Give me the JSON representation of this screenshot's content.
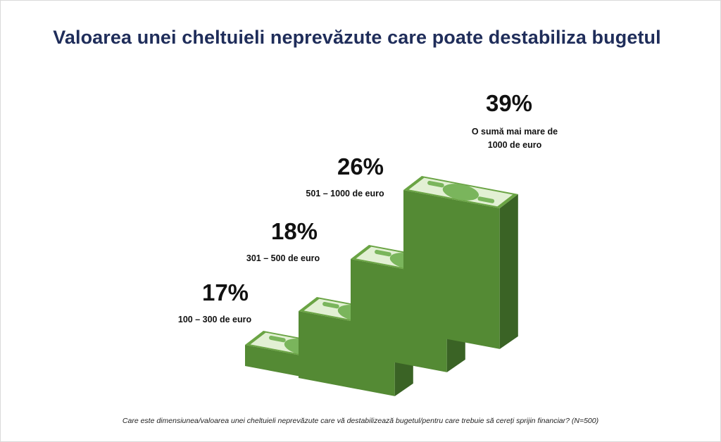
{
  "title": "Valoarea unei cheltuieli neprevăzute care poate destabiliza bugetul",
  "footnote": "Care este dimensiunea/valoarea unei cheltuieli neprevăzute care vă destabilizează bugetul/pentru care trebuie să cereți sprijin financiar? (N=500)",
  "colors": {
    "front": "#548a34",
    "side": "#3a6325",
    "top_edge": "#6aa444",
    "bill": "#e2f0d4",
    "bill_print": "#7ab55c",
    "title": "#1f2d5a"
  },
  "chart_data": {
    "type": "bar",
    "categories": [
      "100 – 300 de euro",
      "301 – 500 de euro",
      "501 – 1000 de euro",
      "O sumă mai mare de 1000 de euro"
    ],
    "category_lines": [
      [
        "100 – 300 de euro"
      ],
      [
        "301 – 500 de euro"
      ],
      [
        "501 – 1000 de euro"
      ],
      [
        "O sumă mai mare de",
        "1000 de euro"
      ]
    ],
    "values": [
      17,
      18,
      26,
      39
    ],
    "labels": [
      "17%",
      "18%",
      "26%",
      "39%"
    ],
    "unit": "%"
  }
}
